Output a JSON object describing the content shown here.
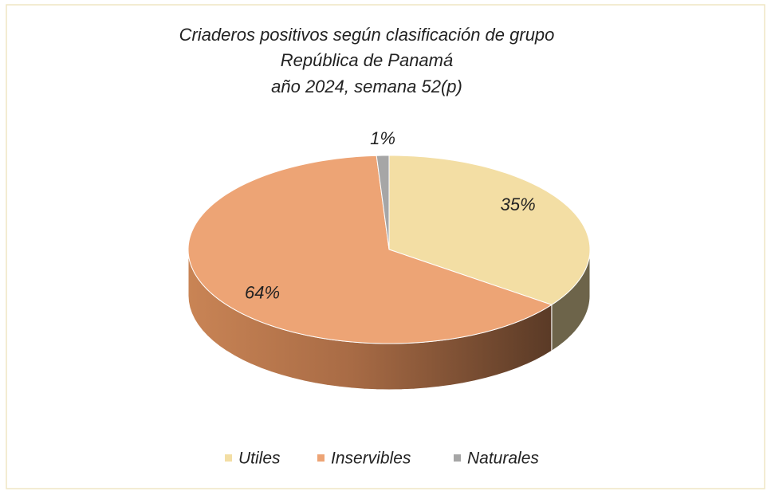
{
  "chart_data": {
    "type": "pie",
    "title": [
      "Criaderos positivos según clasificación de grupo",
      "República de Panamá",
      "año 2024, semana 52(p)"
    ],
    "categories": [
      "Utiles",
      "Inservibles",
      "Naturales"
    ],
    "values": [
      35,
      64,
      1
    ],
    "value_labels": [
      "35%",
      "64%",
      "1%"
    ],
    "colors": [
      "#f3dea4",
      "#eda475",
      "#a6a6a6"
    ],
    "legend": "bottom"
  }
}
